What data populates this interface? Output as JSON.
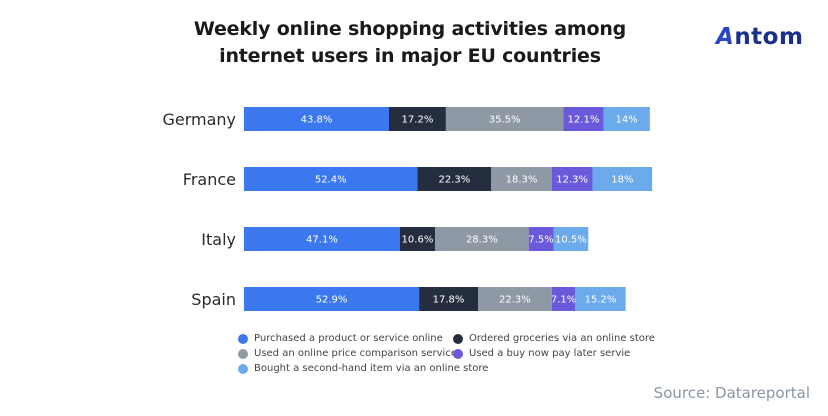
{
  "header": {
    "title_line1": "Weekly online shopping activities among",
    "title_line2": "internet users in major EU countries",
    "logo": "Antom"
  },
  "source": "Source: Datareportal",
  "chart_data": {
    "type": "bar",
    "orientation": "horizontal",
    "stacked": true,
    "title": "Weekly online shopping activities among internet users in major EU countries",
    "xlabel": "",
    "ylabel": "",
    "grid": false,
    "legend_position": "bottom",
    "categories": [
      "Germany",
      "France",
      "Italy",
      "Spain"
    ],
    "series": [
      {
        "name": "Purchased a product or service online",
        "color": "#3B78F0",
        "values": [
          43.8,
          52.4,
          47.1,
          52.9
        ],
        "labels": [
          "43.8%",
          "52.4%",
          "47.1%",
          "52.9%"
        ]
      },
      {
        "name": "Ordered groceries via an online store",
        "color": "#252E3F",
        "values": [
          17.2,
          22.3,
          10.6,
          17.8
        ],
        "labels": [
          "17.2%",
          "22.3%",
          "10.6%",
          "17.8%"
        ]
      },
      {
        "name": "Used an online price comparison service",
        "color": "#8F99A5",
        "values": [
          35.5,
          18.3,
          28.3,
          22.3
        ],
        "labels": [
          "35.5%",
          "18.3%",
          "28.3%",
          "22.3%"
        ]
      },
      {
        "name": "Used a buy now pay later servie",
        "color": "#6A5ADB",
        "values": [
          12.1,
          12.3,
          7.5,
          7.1
        ],
        "labels": [
          "12.1%",
          "12.3%",
          "7.5%",
          "7.1%"
        ]
      },
      {
        "name": "Bought a second-hand item via an online store",
        "color": "#6BAAEB",
        "values": [
          14,
          18,
          10.5,
          15.2
        ],
        "labels": [
          "14%",
          "18%",
          "10.5%",
          "15.2%"
        ]
      }
    ]
  }
}
